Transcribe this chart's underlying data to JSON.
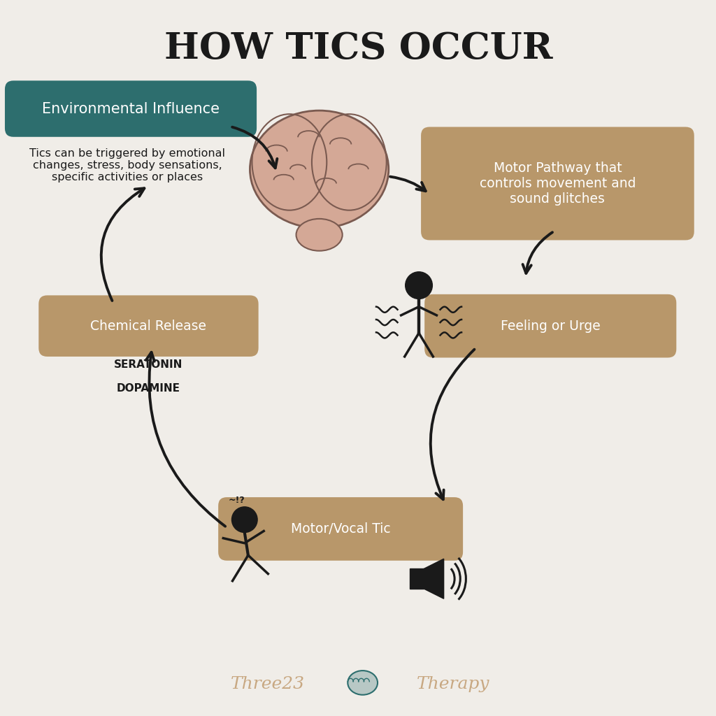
{
  "title": "HOW TICS OCCUR",
  "background_color": "#f0ede8",
  "title_color": "#1a1a1a",
  "title_fontsize": 38,
  "teal_color": "#2d6e6e",
  "tan_color": "#b8976a",
  "dark_color": "#1a1a1a",
  "box1_label": "Environmental Influence",
  "box1_subtext": "Tics can be triggered by emotional\nchanges, stress, body sensations,\nspecific activities or places",
  "box2_label": "Motor Pathway that\ncontrols movement and\nsound glitches",
  "box3_label": "Feeling or Urge",
  "box4_label": "Motor/Vocal Tic",
  "box5_label": "Chemical Release",
  "box5_subtext_line1": "SERATONIN",
  "box5_subtext_line2": "DOPAMINE",
  "brand_color": "#c8a882",
  "brand_teal": "#2d6e6e",
  "brain_fill": "#d4a896",
  "brain_stroke": "#7a5a50"
}
